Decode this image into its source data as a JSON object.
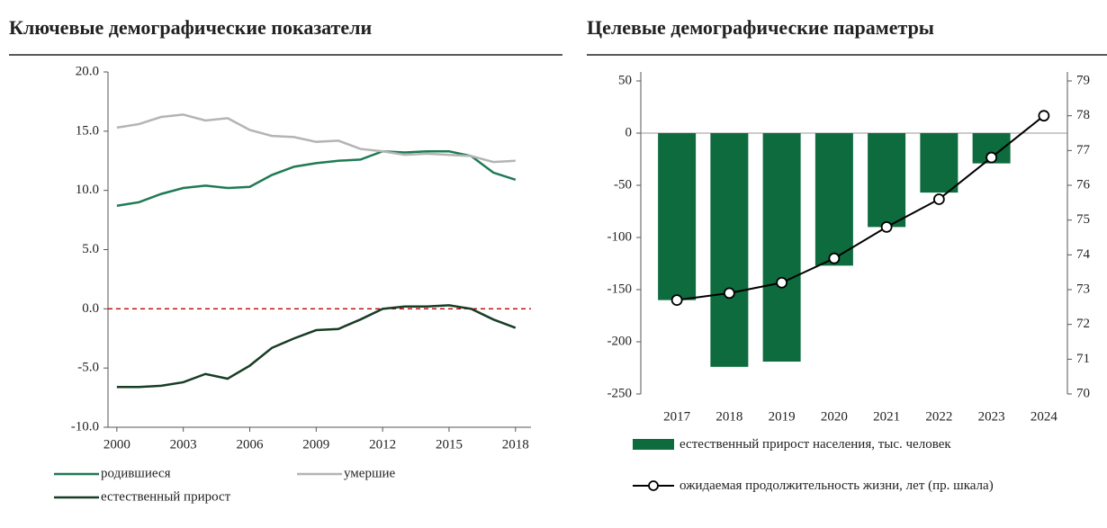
{
  "chart_data": [
    {
      "type": "line",
      "title": "Ключевые демографические показатели",
      "x": [
        2000,
        2001,
        2002,
        2003,
        2004,
        2005,
        2006,
        2007,
        2008,
        2009,
        2010,
        2011,
        2012,
        2013,
        2014,
        2015,
        2016,
        2017,
        2018
      ],
      "series": [
        {
          "name": "родившиеся",
          "color": "#1f7a55",
          "values": [
            8.7,
            9.0,
            9.7,
            10.2,
            10.4,
            10.2,
            10.3,
            11.3,
            12.0,
            12.3,
            12.5,
            12.6,
            13.3,
            13.2,
            13.3,
            13.3,
            12.9,
            11.5,
            10.9
          ]
        },
        {
          "name": "умершие",
          "color": "#b4b4b4",
          "values": [
            15.3,
            15.6,
            16.2,
            16.4,
            15.9,
            16.1,
            15.1,
            14.6,
            14.5,
            14.1,
            14.2,
            13.5,
            13.3,
            13.0,
            13.1,
            13.0,
            12.9,
            12.4,
            12.5
          ]
        },
        {
          "name": "естественный прирост",
          "color": "#173d24",
          "values": [
            -6.6,
            -6.6,
            -6.5,
            -6.2,
            -5.5,
            -5.9,
            -4.8,
            -3.3,
            -2.5,
            -1.8,
            -1.7,
            -0.9,
            0.0,
            0.2,
            0.2,
            0.3,
            0.0,
            -0.9,
            -1.6
          ]
        }
      ],
      "xlim": [
        1999.6,
        2018.7
      ],
      "xticks": [
        2000,
        2003,
        2006,
        2009,
        2012,
        2015,
        2018
      ],
      "ylim": [
        -10,
        20
      ],
      "yticks": [
        {
          "value": -10,
          "label": "-10.0"
        },
        {
          "value": -5,
          "label": "-5.0"
        },
        {
          "value": 0,
          "label": "0.0"
        },
        {
          "value": 5,
          "label": "5.0"
        },
        {
          "value": 10,
          "label": "10.0"
        },
        {
          "value": 15,
          "label": "15.0"
        },
        {
          "value": 20,
          "label": "20.0"
        }
      ],
      "hline": {
        "value": 0,
        "color": "#c00000",
        "style": "dashed"
      }
    },
    {
      "type": "bar",
      "title": "Целевые демографические параметры",
      "categories": [
        "2017",
        "2018",
        "2019",
        "2020",
        "2021",
        "2022",
        "2023",
        "2024"
      ],
      "series": [
        {
          "name": "естественный прирост населения, тыс. человек",
          "type": "bar",
          "color": "#0d6b3e",
          "values": [
            -160,
            -224,
            -219,
            -127,
            -90,
            -57,
            -29,
            null
          ]
        },
        {
          "name": "ожидаемая продолжительность жизни, лет (пр. шкала)",
          "type": "line",
          "axis": "y2",
          "color": "#000000",
          "values": [
            72.7,
            72.9,
            73.2,
            73.9,
            74.8,
            75.6,
            76.8,
            78.0
          ]
        }
      ],
      "ylim": [
        -250,
        50
      ],
      "yticks": [
        -250,
        -200,
        -150,
        -100,
        -50,
        0,
        50
      ],
      "y2lim": [
        70,
        79
      ],
      "y2ticks": [
        70,
        71,
        72,
        73,
        74,
        75,
        76,
        77,
        78,
        79
      ]
    }
  ]
}
